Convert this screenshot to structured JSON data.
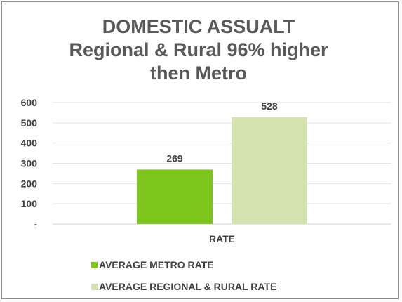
{
  "chart_data": {
    "type": "bar",
    "title_lines": [
      "DOMESTIC ASSUALT",
      "Regional & Rural 96% higher",
      "then Metro"
    ],
    "categories": [
      "RATE"
    ],
    "series": [
      {
        "name": "AVERAGE METRO RATE",
        "values": [
          269
        ],
        "color": "#7cc51a"
      },
      {
        "name": "AVERAGE REGIONAL & RURAL RATE",
        "values": [
          528
        ],
        "color": "#d4e2b0"
      }
    ],
    "ylim": [
      0,
      600
    ],
    "yticks": [
      0,
      100,
      200,
      300,
      400,
      500,
      600
    ],
    "ytick_labels": [
      "-",
      "100",
      "200",
      "300",
      "400",
      "500",
      "600"
    ],
    "data_labels": [
      "269",
      "528"
    ],
    "grid": true,
    "legend_position": "bottom-left"
  }
}
